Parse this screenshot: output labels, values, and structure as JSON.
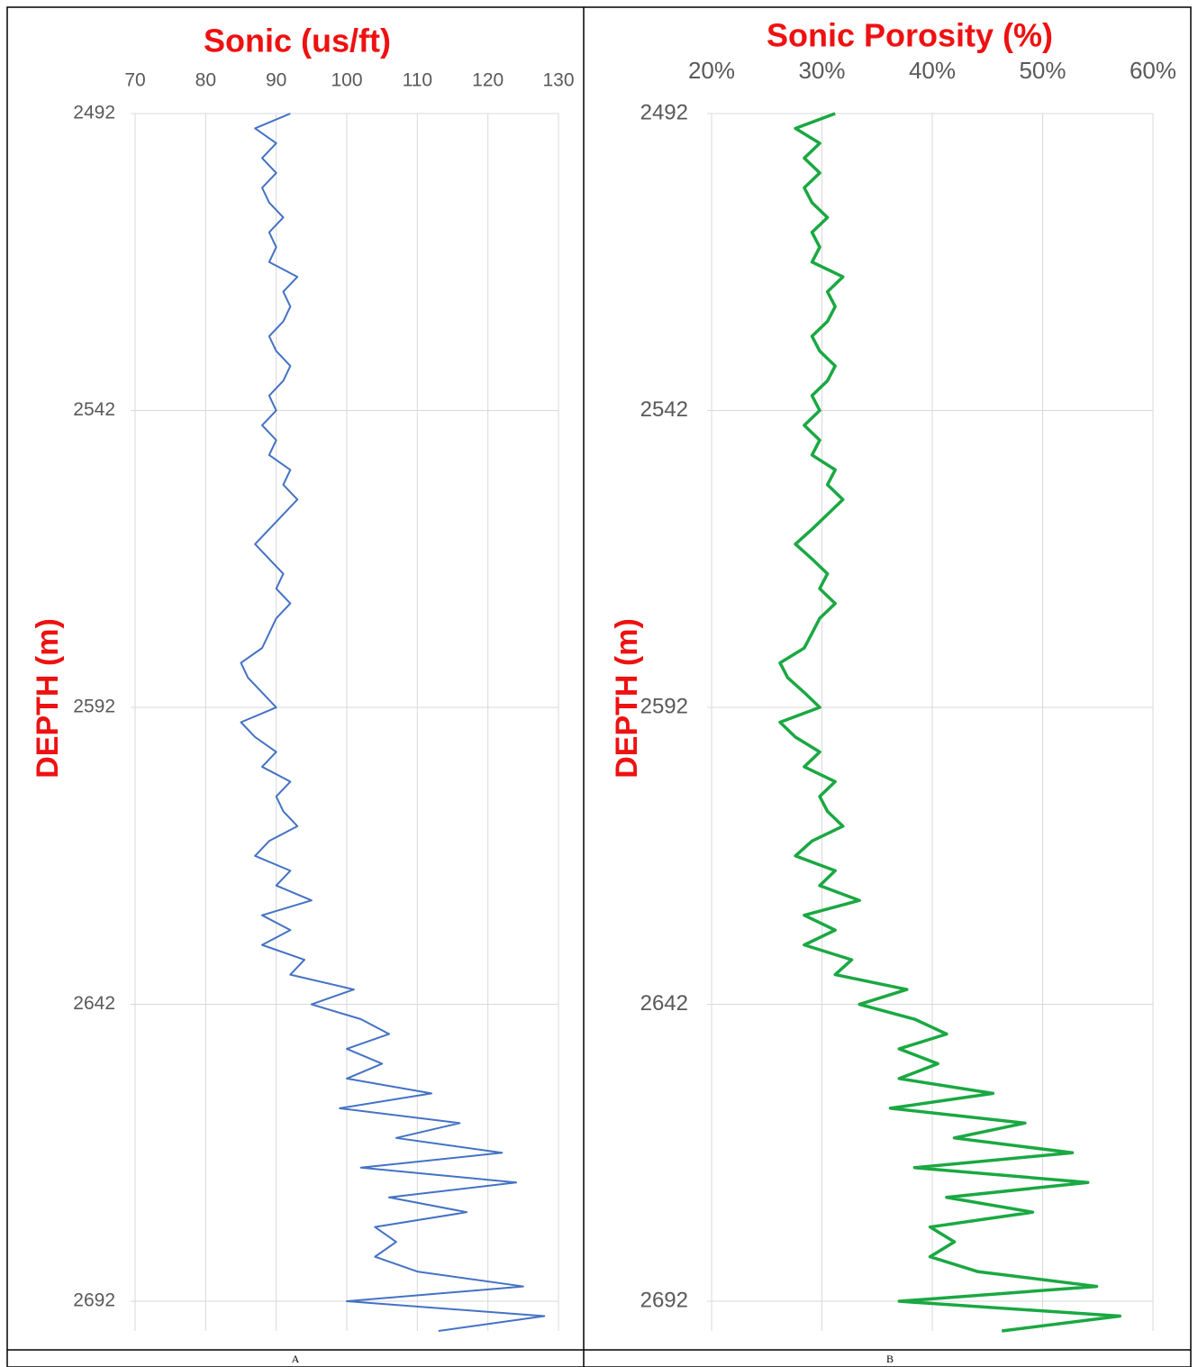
{
  "chart_data": [
    {
      "type": "line",
      "title": "Sonic (us/ft)",
      "y_label": "DEPTH (m)",
      "caption": "A",
      "color": "#4472c4",
      "line_width": 2,
      "grid": true,
      "xlim": [
        70,
        130
      ],
      "xticks": [
        70,
        80,
        90,
        100,
        110,
        120,
        130
      ],
      "ylim": [
        2492,
        2697
      ],
      "yticks": [
        2492,
        2542,
        2592,
        2642,
        2692
      ],
      "y_inverted": true,
      "depth": [
        2492,
        2494.5,
        2497,
        2499.5,
        2502,
        2504.5,
        2507,
        2509.5,
        2512,
        2514.5,
        2517,
        2519.5,
        2522,
        2524.5,
        2527,
        2529.5,
        2532,
        2534.5,
        2537,
        2539.5,
        2542,
        2544.5,
        2547,
        2549.5,
        2552,
        2554.5,
        2557,
        2559.5,
        2562,
        2564.5,
        2567,
        2569.5,
        2572,
        2574.5,
        2577,
        2579.5,
        2582,
        2584.5,
        2587,
        2589.5,
        2592,
        2594.5,
        2597,
        2599.5,
        2602,
        2604.5,
        2607,
        2609.5,
        2612,
        2614.5,
        2617,
        2619.5,
        2622,
        2624.5,
        2627,
        2629.5,
        2632,
        2634.5,
        2637,
        2639.5,
        2642,
        2644.5,
        2647,
        2649.5,
        2652,
        2654.5,
        2657,
        2659.5,
        2662,
        2664.5,
        2667,
        2669.5,
        2672,
        2674.5,
        2677,
        2679.5,
        2682,
        2684.5,
        2687,
        2689.5,
        2692,
        2694.5,
        2697
      ],
      "values": [
        92,
        87,
        90,
        88,
        90,
        88,
        89,
        91,
        89,
        90,
        89,
        93,
        91,
        92,
        91,
        89,
        90,
        92,
        91,
        89,
        90,
        88,
        90,
        89,
        92,
        91,
        93,
        91,
        89,
        87,
        89,
        91,
        90,
        92,
        90,
        89,
        88,
        85,
        86,
        88,
        90,
        85,
        87,
        90,
        88,
        92,
        90,
        91,
        93,
        89,
        87,
        92,
        90,
        95,
        88,
        92,
        88,
        94,
        92,
        101,
        95,
        102,
        106,
        100,
        105,
        100,
        112,
        99,
        116,
        107,
        122,
        102,
        124,
        106,
        117,
        104,
        107,
        104,
        110,
        125,
        100,
        128,
        113
      ]
    },
    {
      "type": "line",
      "title": "Sonic Porosity (%)",
      "y_label": "DEPTH (m)",
      "caption": "B",
      "color": "#1aa842",
      "line_width": 3.5,
      "grid": true,
      "xlim": [
        20,
        60
      ],
      "xticks": [
        {
          "value": 20,
          "label": "20%"
        },
        {
          "value": 30,
          "label": "30%"
        },
        {
          "value": 40,
          "label": "40%"
        },
        {
          "value": 50,
          "label": "50%"
        },
        {
          "value": 60,
          "label": "60%"
        }
      ],
      "ylim": [
        2492,
        2697
      ],
      "yticks": [
        2492,
        2542,
        2592,
        2642,
        2692
      ],
      "y_inverted": true,
      "depth": [
        2492,
        2494.5,
        2497,
        2499.5,
        2502,
        2504.5,
        2507,
        2509.5,
        2512,
        2514.5,
        2517,
        2519.5,
        2522,
        2524.5,
        2527,
        2529.5,
        2532,
        2534.5,
        2537,
        2539.5,
        2542,
        2544.5,
        2547,
        2549.5,
        2552,
        2554.5,
        2557,
        2559.5,
        2562,
        2564.5,
        2567,
        2569.5,
        2572,
        2574.5,
        2577,
        2579.5,
        2582,
        2584.5,
        2587,
        2589.5,
        2592,
        2594.5,
        2597,
        2599.5,
        2602,
        2604.5,
        2607,
        2609.5,
        2612,
        2614.5,
        2617,
        2619.5,
        2622,
        2624.5,
        2627,
        2629.5,
        2632,
        2634.5,
        2637,
        2639.5,
        2642,
        2644.5,
        2647,
        2649.5,
        2652,
        2654.5,
        2657,
        2659.5,
        2662,
        2664.5,
        2667,
        2669.5,
        2672,
        2674.5,
        2677,
        2679.5,
        2682,
        2684.5,
        2687,
        2689.5,
        2692,
        2694.5,
        2697
      ],
      "values": [
        31.2,
        27.6,
        29.8,
        28.4,
        29.8,
        28.4,
        29.1,
        30.5,
        29.1,
        29.8,
        29.1,
        31.9,
        30.5,
        31.2,
        30.5,
        29.1,
        29.8,
        31.2,
        30.5,
        29.1,
        29.8,
        28.4,
        29.8,
        29.1,
        31.2,
        30.5,
        31.9,
        30.5,
        29.1,
        27.6,
        29.1,
        30.5,
        29.8,
        31.2,
        29.8,
        29.1,
        28.4,
        26.2,
        26.9,
        28.4,
        29.8,
        26.2,
        27.6,
        29.8,
        28.4,
        31.2,
        29.8,
        30.5,
        31.9,
        29.1,
        27.6,
        31.2,
        29.8,
        33.4,
        28.4,
        31.2,
        28.4,
        32.7,
        31.2,
        37.7,
        33.4,
        38.4,
        41.3,
        37.0,
        40.5,
        37.0,
        45.5,
        36.2,
        48.4,
        42.0,
        52.7,
        38.4,
        54.1,
        41.3,
        49.1,
        39.8,
        42.0,
        39.8,
        44.1,
        54.9,
        37.0,
        57.0,
        46.3
      ]
    }
  ]
}
